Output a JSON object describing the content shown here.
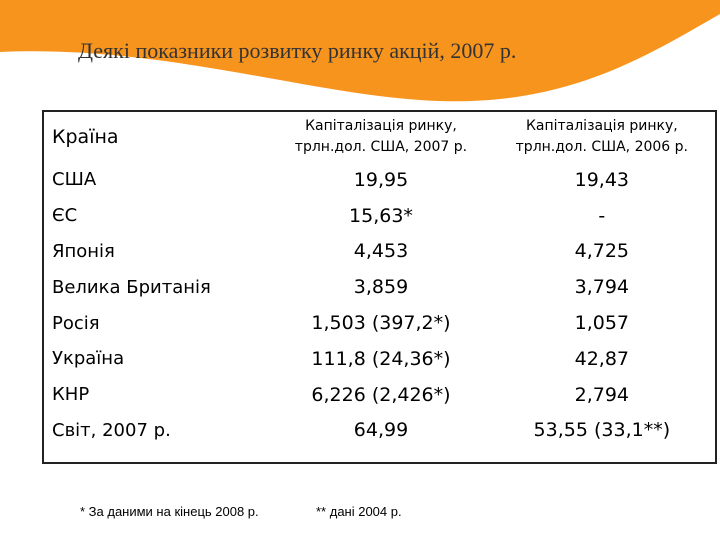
{
  "slide": {
    "title": "Деякі показники розвитку ринку акцій, 2007 р.",
    "accent_color": "#f7941d"
  },
  "table": {
    "headers": [
      "Країна",
      "Капіталізація ринку, трлн.дол. США, 2007 р.",
      "Капіталізація ринку, трлн.дол. США, 2006 р."
    ],
    "rows": [
      [
        "США",
        "19,95",
        "19,43"
      ],
      [
        "ЄС",
        "15,63*",
        "-"
      ],
      [
        "Японія",
        "4,453",
        "4,725"
      ],
      [
        "Велика Британія",
        "3,859",
        "3,794"
      ],
      [
        "Росія",
        "1,503 (397,2*)",
        "1,057"
      ],
      [
        "Україна",
        "111,8 (24,36*)",
        "42,87"
      ],
      [
        "КНР",
        "6,226 (2,426*)",
        "2,794"
      ],
      [
        "Світ, 2007 р.",
        "64,99",
        "53,55 (33,1**)"
      ]
    ]
  },
  "footnotes": {
    "note1": "* За даними на кінець 2008 р.",
    "note2": "** дані 2004 р."
  }
}
